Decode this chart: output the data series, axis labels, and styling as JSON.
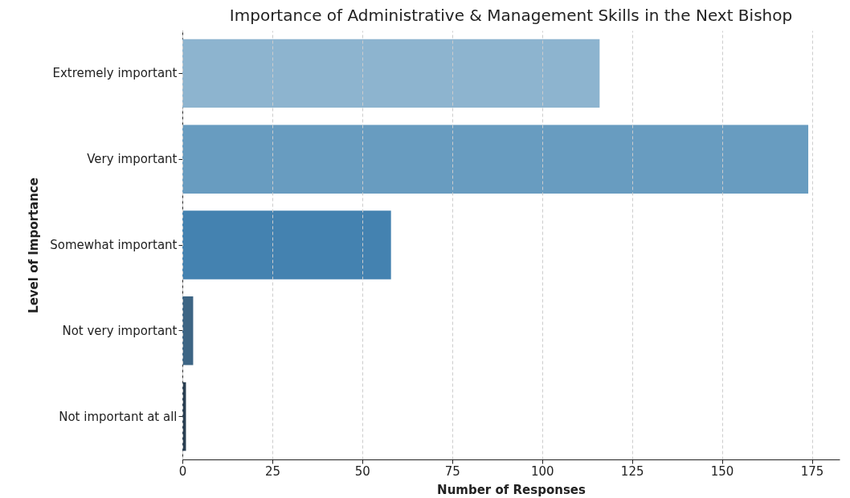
{
  "chart_data": {
    "type": "bar",
    "orientation": "horizontal",
    "title": "Importance of Administrative & Management Skills in the Next Bishop",
    "xlabel": "Number of Responses",
    "ylabel": "Level of Importance",
    "categories": [
      "Extremely important",
      "Very important",
      "Somewhat important",
      "Not very important",
      "Not important at all"
    ],
    "values": [
      116,
      174,
      58,
      3,
      1
    ],
    "colors": [
      "#8db4cf",
      "#689cc0",
      "#4482b0",
      "#3d6584",
      "#2a3f52"
    ],
    "xlim": [
      0,
      182.7
    ],
    "xticks": [
      0,
      25,
      50,
      75,
      100,
      125,
      150,
      175
    ],
    "grid": "x"
  }
}
